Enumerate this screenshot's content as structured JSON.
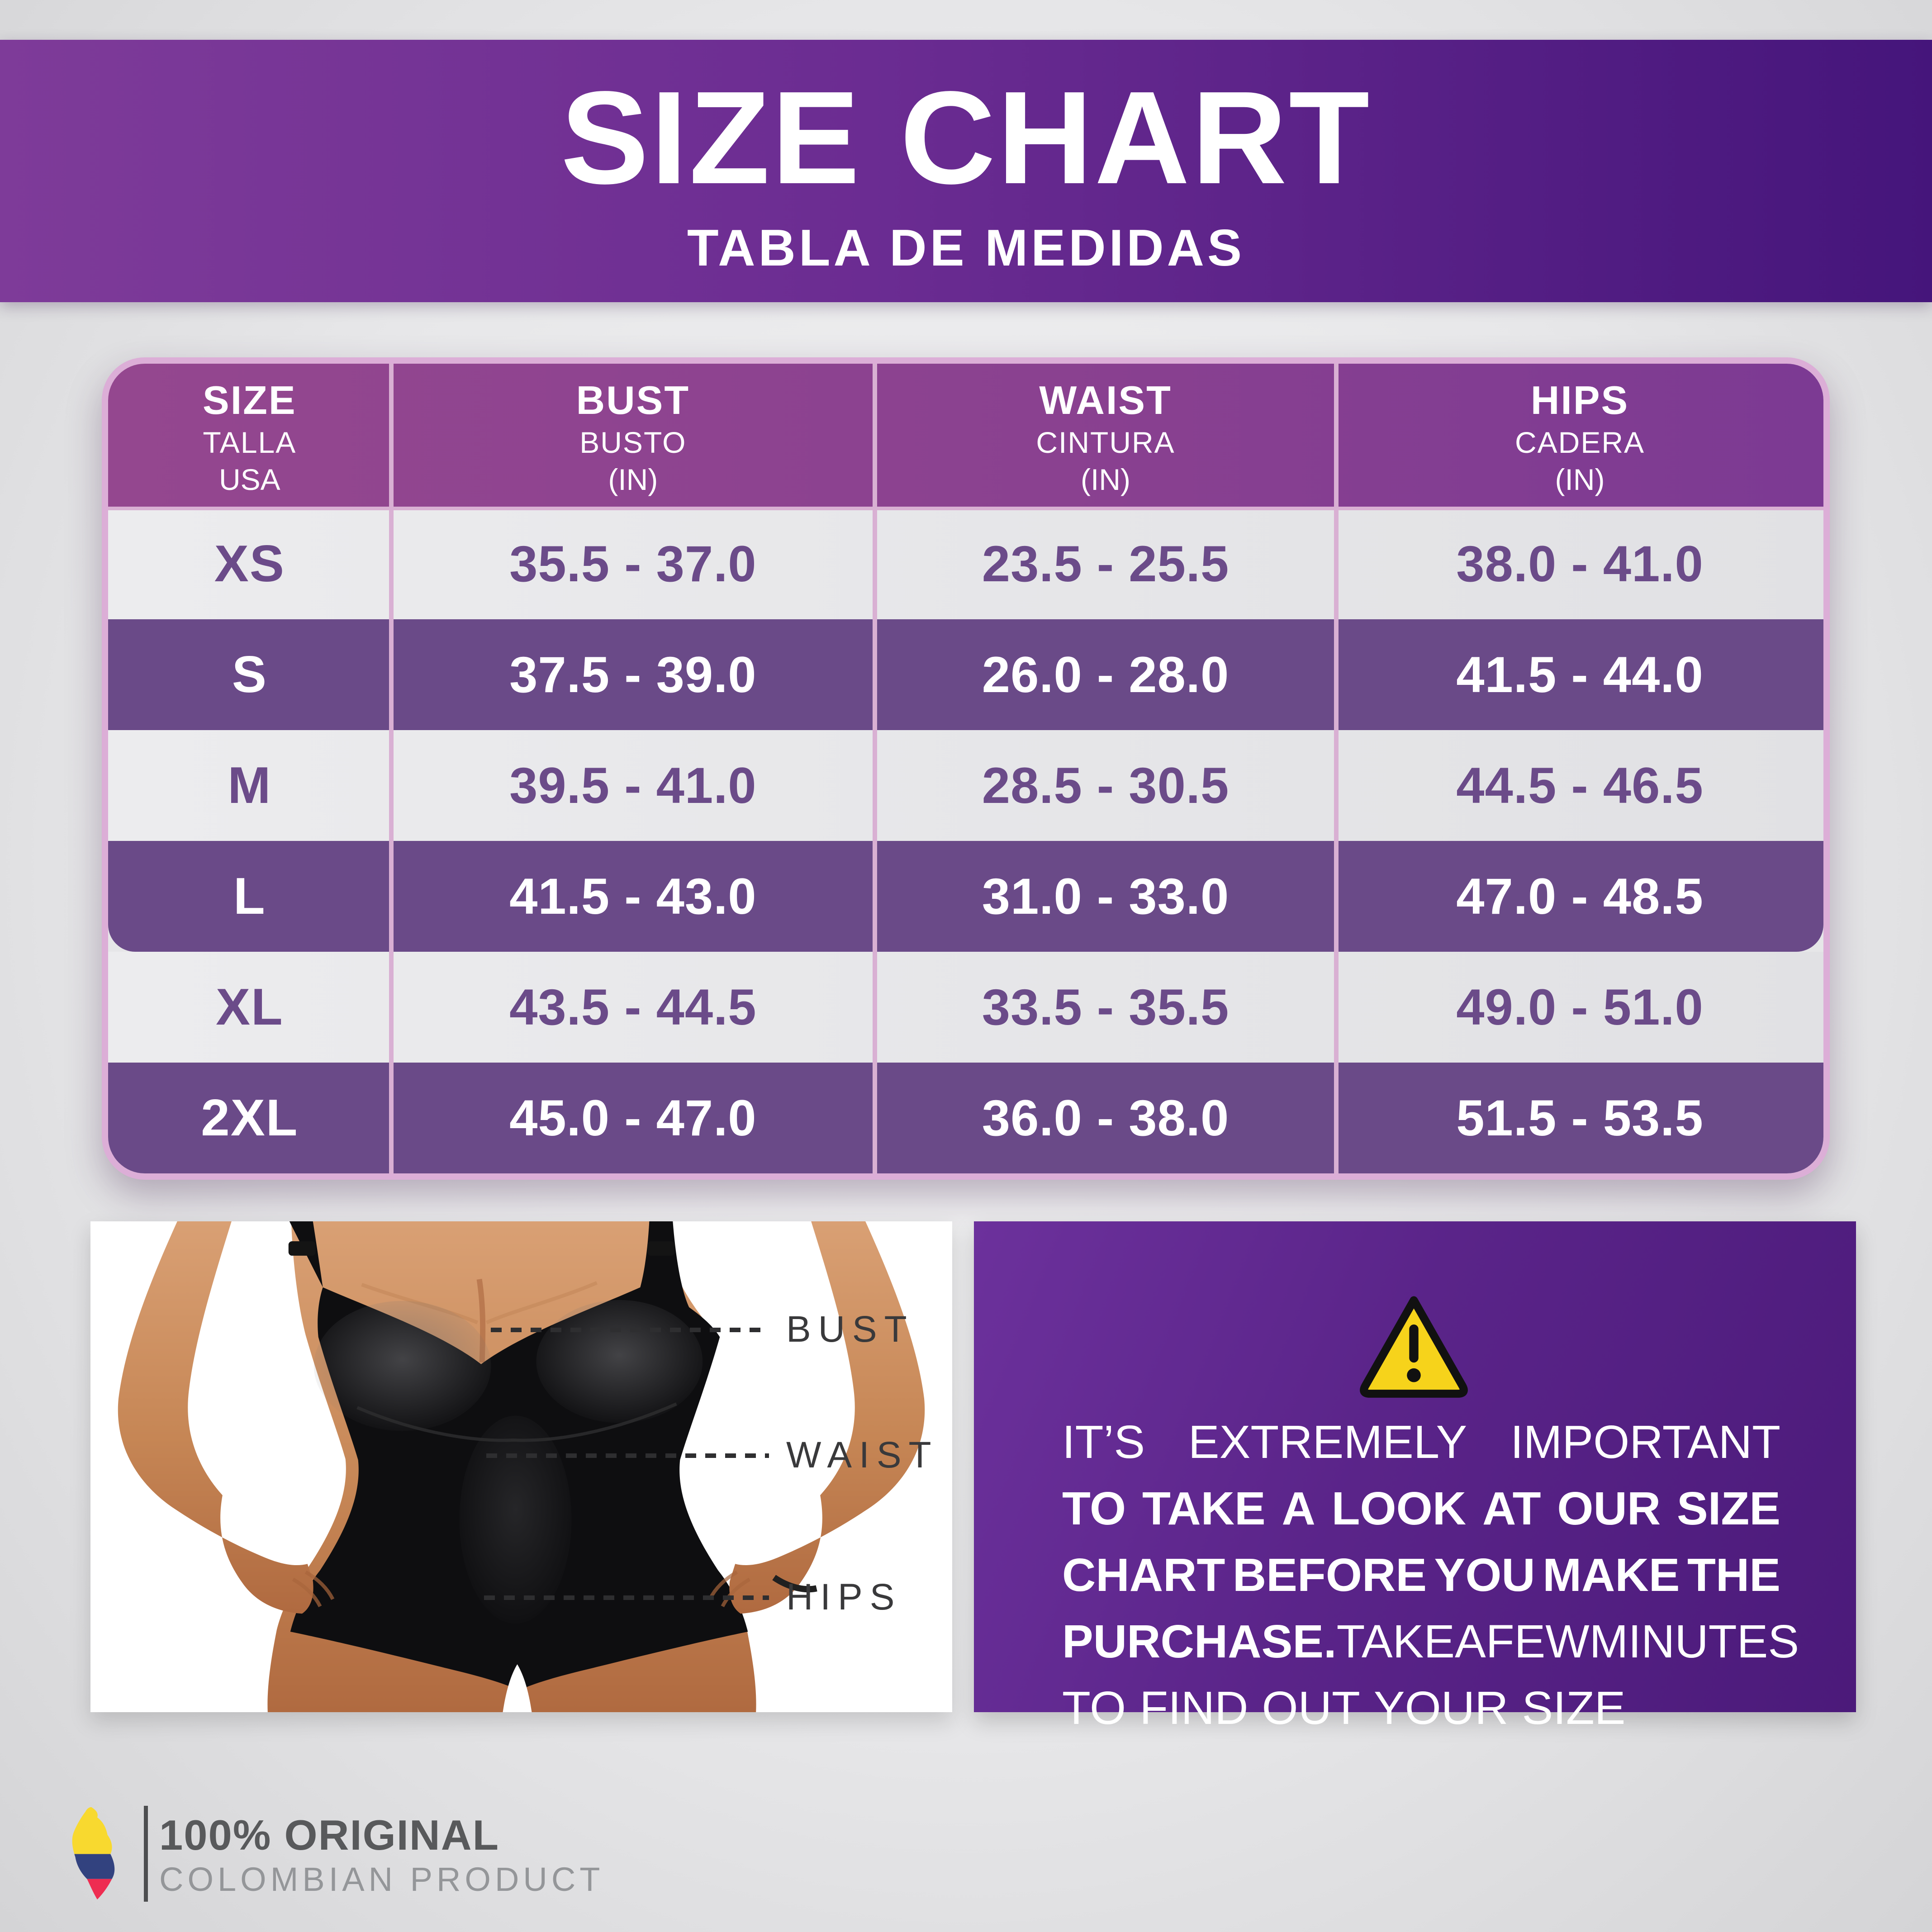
{
  "banner": {
    "title": "SIZE CHART",
    "subtitle": "TABLA DE MEDIDAS"
  },
  "chart_data": {
    "type": "table",
    "title": "SIZE CHART",
    "subtitle": "TABLA DE MEDIDAS",
    "columns": [
      {
        "label": "SIZE",
        "sublabel": "TALLA",
        "unit": "USA"
      },
      {
        "label": "BUST",
        "sublabel": "BUSTO",
        "unit": "(IN)"
      },
      {
        "label": "WAIST",
        "sublabel": "CINTURA",
        "unit": "(IN)"
      },
      {
        "label": "HIPS",
        "sublabel": "CADERA",
        "unit": "(IN)"
      }
    ],
    "rows": [
      {
        "size": "XS",
        "bust": "35.5 - 37.0",
        "waist": "23.5 - 25.5",
        "hips": "38.0 - 41.0"
      },
      {
        "size": "S",
        "bust": "37.5 - 39.0",
        "waist": "26.0 - 28.0",
        "hips": "41.5 - 44.0"
      },
      {
        "size": "M",
        "bust": "39.5 - 41.0",
        "waist": "28.5 - 30.5",
        "hips": "44.5 - 46.5"
      },
      {
        "size": "L",
        "bust": "41.5 - 43.0",
        "waist": "31.0 - 33.0",
        "hips": "47.0 - 48.5"
      },
      {
        "size": "XL",
        "bust": "43.5 - 44.5",
        "waist": "33.5 - 35.5",
        "hips": "49.0 - 51.0"
      },
      {
        "size": "2XL",
        "bust": "45.0 - 47.0",
        "waist": "36.0 - 38.0",
        "hips": "51.5 - 53.5"
      }
    ]
  },
  "figure": {
    "labels": [
      "BUST",
      "WAIST",
      "HIPS"
    ]
  },
  "warning": {
    "icon": "warning-triangle-icon",
    "lines": [
      {
        "justify": true,
        "words": [
          {
            "t": "IT’S",
            "b": false
          },
          {
            "t": "EXTREMELY",
            "b": false
          },
          {
            "t": "IMPORTANT",
            "b": false
          }
        ]
      },
      {
        "justify": true,
        "words": [
          {
            "t": "TO",
            "b": true
          },
          {
            "t": "TAKE",
            "b": true
          },
          {
            "t": "A",
            "b": true
          },
          {
            "t": "LOOK",
            "b": true
          },
          {
            "t": "AT",
            "b": true
          },
          {
            "t": "OUR",
            "b": true
          },
          {
            "t": "SIZE",
            "b": true
          }
        ]
      },
      {
        "justify": true,
        "words": [
          {
            "t": "CHART",
            "b": true
          },
          {
            "t": "BEFORE",
            "b": true
          },
          {
            "t": "YOU",
            "b": true
          },
          {
            "t": "MAKE",
            "b": true
          },
          {
            "t": "THE",
            "b": true
          }
        ]
      },
      {
        "justify": true,
        "words": [
          {
            "t": "PURCHASE.",
            "b": true
          },
          {
            "t": "TAKE",
            "b": false
          },
          {
            "t": "A",
            "b": false
          },
          {
            "t": "FEW",
            "b": false
          },
          {
            "t": "MINUTES",
            "b": false
          }
        ]
      },
      {
        "justify": false,
        "words": [
          {
            "t": "TO",
            "b": false
          },
          {
            "t": "FIND",
            "b": false
          },
          {
            "t": "OUT",
            "b": false
          },
          {
            "t": "YOUR",
            "b": false
          },
          {
            "t": "SIZE",
            "b": false
          }
        ]
      }
    ]
  },
  "footer": {
    "badge_line1": "100% ORIGINAL",
    "badge_line2": "COLOMBIAN PRODUCT",
    "flag_icon": "colombia-map-icon"
  },
  "colors": {
    "banner_left": "#7E3B99",
    "banner_right": "#45157B",
    "header_purple": "#8A4190",
    "row_purple": "#6A4A88",
    "row_light": "#E6E6E8",
    "pink_border": "#DCAED7",
    "warning_left": "#6C319C",
    "warning_right": "#4B1A7A",
    "triangle_yellow": "#F6D31B",
    "flag_yellow": "#F8D92F",
    "flag_blue": "#32427F",
    "flag_red": "#EE2C51"
  }
}
